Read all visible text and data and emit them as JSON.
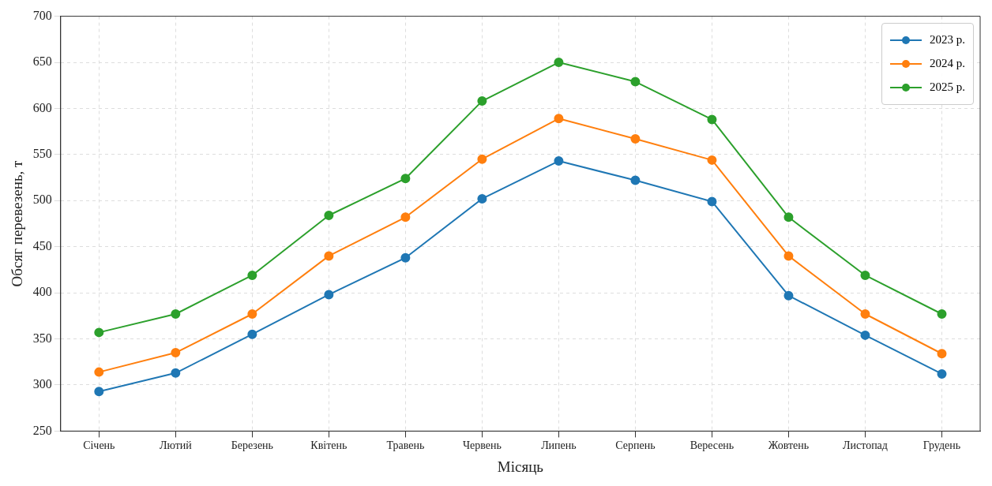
{
  "chart_data": {
    "type": "line",
    "xlabel": "Місяць",
    "ylabel": "Обсяг перевезень, т",
    "categories": [
      "Січень",
      "Лютий",
      "Березень",
      "Квітень",
      "Травень",
      "Червень",
      "Липень",
      "Серпень",
      "Вересень",
      "Жовтень",
      "Листопад",
      "Грудень"
    ],
    "series": [
      {
        "name": "2023 р.",
        "color": "#1f77b4",
        "values": [
          293,
          313,
          355,
          398,
          438,
          502,
          543,
          522,
          499,
          397,
          354,
          312
        ]
      },
      {
        "name": "2024 р.",
        "color": "#ff7f0e",
        "values": [
          314,
          335,
          377,
          440,
          482,
          545,
          589,
          567,
          544,
          440,
          377,
          334
        ]
      },
      {
        "name": "2025 р.",
        "color": "#2ca02c",
        "values": [
          357,
          377,
          419,
          484,
          524,
          608,
          650,
          629,
          588,
          482,
          419,
          377
        ]
      }
    ],
    "ylim": [
      250,
      700
    ],
    "yticks": [
      250,
      300,
      350,
      400,
      450,
      500,
      550,
      600,
      650,
      700
    ],
    "grid": true,
    "legend": "top right",
    "marker": "circle",
    "line_style": "solid"
  }
}
